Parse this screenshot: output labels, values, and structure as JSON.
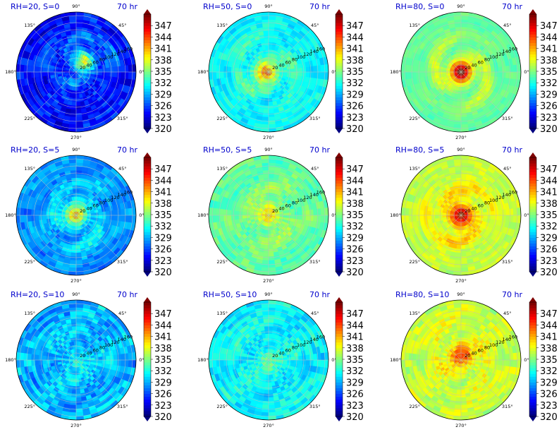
{
  "chart_data": {
    "type": "polar-contour",
    "colormap": "jet",
    "time_label": "70 hr",
    "angle_labels": [
      "90°",
      "45°",
      "0°",
      "315°",
      "270°",
      "225°",
      "180°",
      "135°"
    ],
    "radial_ticks": [
      20,
      40,
      60,
      80,
      100,
      120,
      140,
      160
    ],
    "colorbar_ticks": [
      320,
      323,
      326,
      329,
      332,
      335,
      338,
      341,
      344,
      347
    ],
    "colorbar_range": [
      320,
      350
    ],
    "panels": [
      {
        "title": "RH=20, S=0",
        "rh": 20,
        "s": 0,
        "core_value": 339,
        "core_offset": [
          0.12,
          0.18
        ],
        "background": 324,
        "noise": 0.35
      },
      {
        "title": "RH=50, S=0",
        "rh": 50,
        "s": 0,
        "core_value": 343,
        "core_offset": [
          -0.05,
          0.0
        ],
        "background": 331,
        "noise": 0.25
      },
      {
        "title": "RH=80, S=0",
        "rh": 80,
        "s": 0,
        "core_value": 350,
        "core_offset": [
          0.0,
          0.0
        ],
        "background": 334,
        "noise": 0.15
      },
      {
        "title": "RH=20, S=5",
        "rh": 20,
        "s": 5,
        "core_value": 341,
        "core_offset": [
          0.0,
          0.0
        ],
        "background": 328,
        "noise": 0.3
      },
      {
        "title": "RH=50, S=5",
        "rh": 50,
        "s": 5,
        "core_value": 341,
        "core_offset": [
          0.0,
          0.0
        ],
        "background": 334,
        "noise": 0.25
      },
      {
        "title": "RH=80, S=5",
        "rh": 80,
        "s": 5,
        "core_value": 350,
        "core_offset": [
          0.0,
          0.0
        ],
        "background": 337,
        "noise": 0.2
      },
      {
        "title": "RH=20, S=10",
        "rh": 20,
        "s": 10,
        "core_value": 332,
        "core_offset": [
          0.0,
          0.0
        ],
        "background": 329,
        "noise": 0.4
      },
      {
        "title": "RH=50, S=10",
        "rh": 50,
        "s": 10,
        "core_value": 334,
        "core_offset": [
          0.0,
          0.0
        ],
        "background": 331,
        "noise": 0.35
      },
      {
        "title": "RH=80, S=10",
        "rh": 80,
        "s": 10,
        "core_value": 345,
        "core_offset": [
          0.0,
          0.08
        ],
        "background": 337,
        "noise": 0.3
      }
    ]
  }
}
